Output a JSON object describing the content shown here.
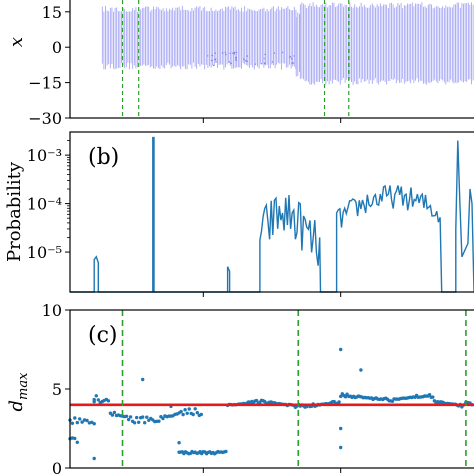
{
  "chart_data": [
    {
      "panel": "a",
      "type": "scatter",
      "ylabel": "x",
      "ylim": [
        -30,
        20
      ],
      "xlim": [
        0,
        1
      ],
      "yticks": [
        -30,
        -15,
        0,
        15
      ],
      "ytick_labels": [
        "−30",
        "−15",
        "0",
        "15"
      ],
      "series_color": "#7b7bef",
      "bands": [
        {
          "x0": 0.08,
          "x1": 0.56,
          "y0": -9.5,
          "y1": 17.5
        },
        {
          "x0": 0.56,
          "x1": 0.57,
          "y0": -13,
          "y1": 15
        },
        {
          "x0": 0.57,
          "x1": 1.0,
          "y0": -16,
          "y1": 19
        }
      ],
      "dashed_lines_x": [
        0.13,
        0.17,
        0.63,
        0.69
      ]
    },
    {
      "panel": "b",
      "type": "line",
      "label": "(b)",
      "ylabel": "Probability",
      "yscale": "log",
      "ylim": [
        1.5e-06,
        0.003
      ],
      "yticks": [
        1e-05,
        0.0001,
        0.001
      ],
      "ytick_labels": [
        "10⁻⁵",
        "10⁻⁴",
        "10⁻³"
      ],
      "line_color": "#1f77b4",
      "x": [
        0.0,
        0.02,
        0.02,
        0.025,
        0.03,
        0.03,
        0.13,
        0.13,
        0.133,
        0.133,
        0.17,
        0.17,
        0.175,
        0.175,
        0.22,
        0.24,
        0.26,
        0.28,
        0.3,
        0.32,
        0.34,
        0.36,
        0.38,
        0.4,
        0.42,
        0.44,
        0.46,
        0.48,
        0.5,
        0.52,
        0.54,
        0.56,
        0.58,
        0.6,
        0.62,
        0.64,
        0.66,
        0.68,
        0.7,
        0.72,
        0.74,
        0.76,
        0.78,
        0.8,
        0.82,
        0.84,
        0.86,
        0.88,
        0.9,
        0.92,
        0.94,
        0.96,
        0.98,
        1.0
      ],
      "y": [
        1.5e-06,
        1.5e-06,
        7e-06,
        8e-06,
        6e-06,
        1.5e-06,
        1.5e-06,
        0.0023,
        0.0023,
        1.5e-06,
        1.5e-06,
        5e-06,
        5e-06,
        1.5e-06,
        1.5e-06,
        1.5e-06,
        1.5e-06,
        1.5e-06,
        1.5e-06,
        1.5e-06,
        1.5e-06,
        1.5e-06,
        1.5e-06,
        1.5e-06,
        1.5e-06,
        1.5e-06,
        1.5e-06,
        1.5e-06,
        1.5e-06,
        1.5e-06,
        1.5e-06,
        1.5e-06,
        1.5e-06,
        1.5e-06,
        1.5e-06,
        1.5e-06,
        1.5e-06,
        1.5e-06,
        1.5e-06,
        1.5e-06,
        1.5e-06,
        1.5e-06,
        1.5e-06,
        1.5e-06,
        1.5e-06,
        1.5e-06,
        1.5e-06,
        1.5e-06,
        1.5e-06,
        1.5e-06,
        1.5e-06,
        1.5e-06,
        1.5e-06,
        1.5e-06
      ]
    },
    {
      "panel": "c",
      "type": "scatter",
      "label": "(c)",
      "ylabel": "d_max",
      "ylim": [
        0,
        10
      ],
      "yticks": [
        0,
        5,
        10
      ],
      "ytick_labels": [
        "0",
        "5",
        "10"
      ],
      "point_color": "#1f77b4",
      "hline": {
        "y": 4.0,
        "color": "#e41a1c"
      },
      "dashed_lines_x": [
        0.13,
        0.565,
        0.98
      ],
      "dashed_color": "#2ca02c",
      "points_x": [],
      "points_y": []
    }
  ]
}
